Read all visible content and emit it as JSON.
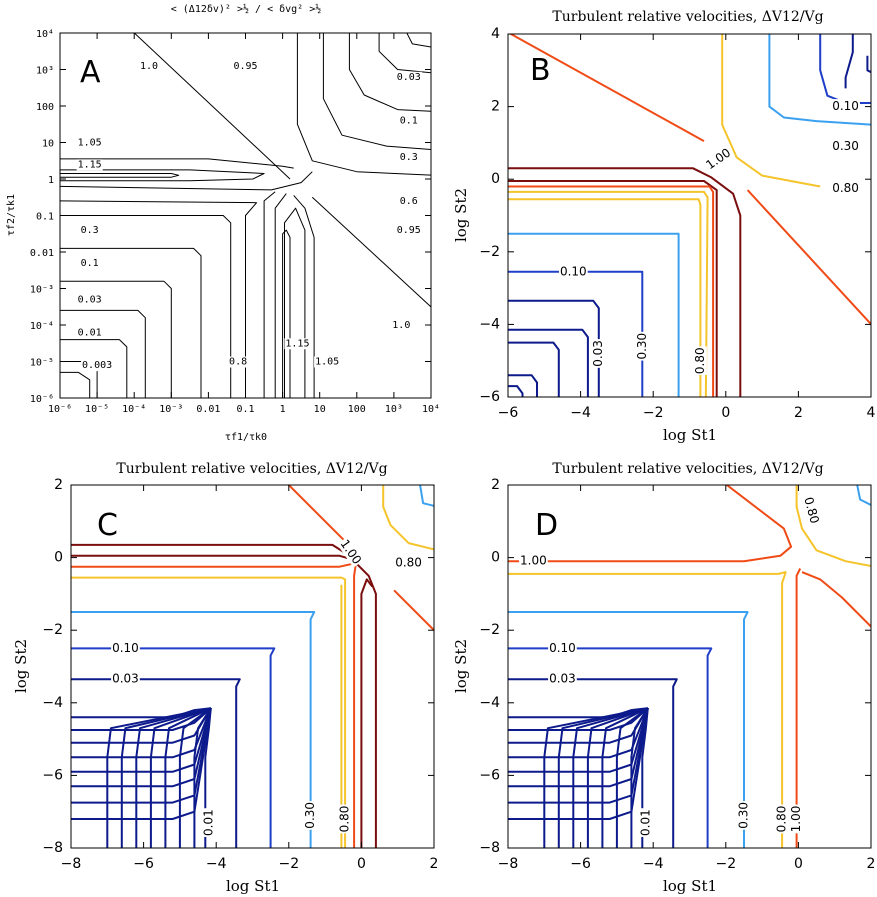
{
  "colors": {
    "c_0_003": "#0d1a73",
    "c_0_01": "#0d1a73",
    "c_0_03": "#0d1a8c",
    "c_0_10": "#1f3fc8",
    "c_0_30": "#3aa0f0",
    "c_0_80": "#f5c42a",
    "c_1_00": "#f04b16",
    "c_1_05": "#7a0e0e",
    "mono": "#000000"
  },
  "chart_data": [
    {
      "panel": "A",
      "type": "contour",
      "title": "< (Δ12δv)² >½ / < δvg² >½",
      "xlabel": "τf1/τk0",
      "ylabel": "τf2/τk1",
      "xticks": [
        "10⁻⁶",
        "10⁻⁵",
        "10⁻⁴",
        "10⁻³",
        "0.01",
        "0.1",
        "1",
        "10",
        "100",
        "10³",
        "10⁴"
      ],
      "yticks": [
        "10⁻⁶",
        "10⁻⁵",
        "10⁻⁴",
        "10⁻³",
        "0.01",
        "0.1",
        "1",
        "10",
        "100",
        "10³",
        "10⁴"
      ],
      "xlim": [
        -6,
        4
      ],
      "ylim": [
        -6,
        4
      ],
      "log_scale": true,
      "contour_labels": [
        "1.0",
        "0.95",
        "0.03",
        "0.1",
        "0.3",
        "0.6",
        "0.95",
        "1.05",
        "1.15",
        "0.3",
        "0.1",
        "0.03",
        "0.01",
        "0.003",
        "0.8",
        "1.15",
        "1.05",
        "1.0"
      ]
    },
    {
      "panel": "B",
      "type": "contour",
      "title": "Turbulent relative velocities, ΔV12/Vg",
      "xlabel": "log St1",
      "ylabel": "log St2",
      "xticks": [
        "−6",
        "−4",
        "−2",
        "0",
        "2",
        "4"
      ],
      "yticks": [
        "−6",
        "−4",
        "−2",
        "0",
        "2",
        "4"
      ],
      "xlim": [
        -6,
        4
      ],
      "ylim": [
        -6,
        4
      ],
      "contour_levels": [
        0.03,
        0.1,
        0.3,
        0.8,
        1.0,
        1.05
      ],
      "contour_labels": [
        "1.00",
        "0.10",
        "0.30",
        "0.80",
        "0.10",
        "0.03",
        "0.30",
        "0.80"
      ]
    },
    {
      "panel": "C",
      "type": "contour",
      "title": "Turbulent relative velocities, ΔV12/Vg",
      "xlabel": "log St1",
      "ylabel": "log St2",
      "xticks": [
        "−8",
        "−6",
        "−4",
        "−2",
        "0",
        "2"
      ],
      "yticks": [
        "−8",
        "−6",
        "−4",
        "−2",
        "0",
        "2"
      ],
      "xlim": [
        -8,
        2
      ],
      "ylim": [
        -8,
        2
      ],
      "contour_levels": [
        0.01,
        0.03,
        0.1,
        0.3,
        0.8,
        1.0,
        1.05
      ],
      "contour_labels": [
        "1.00",
        "0.80",
        "0.10",
        "0.03",
        "0.01",
        "0.30",
        "0.80"
      ]
    },
    {
      "panel": "D",
      "type": "contour",
      "title": "Turbulent relative velocities, ΔV12/Vg",
      "xlabel": "log St1",
      "ylabel": "log St2",
      "xticks": [
        "−8",
        "−6",
        "−4",
        "−2",
        "0",
        "2"
      ],
      "yticks": [
        "−8",
        "−6",
        "−4",
        "−2",
        "0",
        "2"
      ],
      "xlim": [
        -8,
        2
      ],
      "ylim": [
        -8,
        2
      ],
      "contour_levels": [
        0.01,
        0.03,
        0.1,
        0.3,
        0.8,
        1.0
      ],
      "contour_labels": [
        "0.80",
        "1.00",
        "0.10",
        "0.03",
        "0.01",
        "0.30",
        "0.80",
        "1.00"
      ]
    }
  ],
  "panels": {
    "A": {
      "letter": "A",
      "title": "< (Δ12δv)² >½ / < δvg² >½",
      "xlabel": "τf1/τk0",
      "ylabel": "τf2/τk1"
    },
    "B": {
      "letter": "B",
      "title": "Turbulent relative velocities, ΔV12/Vg",
      "xlabel": "log St1",
      "ylabel": "log St2"
    },
    "C": {
      "letter": "C",
      "title": "Turbulent relative velocities, ΔV12/Vg",
      "xlabel": "log St1",
      "ylabel": "log St2"
    },
    "D": {
      "letter": "D",
      "title": "Turbulent relative velocities, ΔV12/Vg",
      "xlabel": "log St1",
      "ylabel": "log St2"
    }
  }
}
